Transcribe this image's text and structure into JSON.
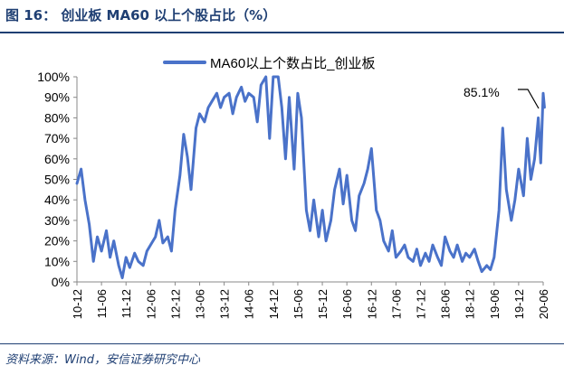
{
  "header": {
    "title": "图 16：  创业板 MA60 以上个股占比（%）"
  },
  "footer": {
    "source": "资料来源：Wind，安信证券研究中心"
  },
  "colors": {
    "line": "#4a72c9",
    "title": "#1f3f73",
    "axis": "#888888",
    "annotation_leader": "#000000"
  },
  "chart_data": {
    "type": "line",
    "title": "",
    "xlabel": "",
    "ylabel": "",
    "ylim": [
      0,
      100
    ],
    "legend": {
      "label": "MA60以上个数占比_创业板",
      "placement": "top"
    },
    "grid": false,
    "y_ticks": [
      "0%",
      "10%",
      "20%",
      "30%",
      "40%",
      "50%",
      "60%",
      "70%",
      "80%",
      "90%",
      "100%"
    ],
    "x_ticks": [
      "10-12",
      "11-06",
      "11-12",
      "12-06",
      "12-12",
      "13-06",
      "13-12",
      "14-06",
      "14-12",
      "15-06",
      "15-12",
      "16-06",
      "16-12",
      "17-06",
      "17-12",
      "18-06",
      "18-12",
      "19-06",
      "19-12",
      "20-06"
    ],
    "annotation": {
      "text": "85.1%",
      "value": 85.1
    },
    "series": [
      {
        "name": "MA60以上个数占比_创业板",
        "x": [
          0,
          0.17,
          0.33,
          0.5,
          0.67,
          0.83,
          1.0,
          1.2,
          1.35,
          1.5,
          1.7,
          1.85,
          2.0,
          2.15,
          2.35,
          2.5,
          2.7,
          2.85,
          3.0,
          3.2,
          3.35,
          3.5,
          3.7,
          3.85,
          4.0,
          4.2,
          4.35,
          4.5,
          4.65,
          4.85,
          5.0,
          5.2,
          5.35,
          5.5,
          5.7,
          5.85,
          6.0,
          6.2,
          6.35,
          6.5,
          6.7,
          6.85,
          7.0,
          7.2,
          7.35,
          7.5,
          7.7,
          7.85,
          8.0,
          8.2,
          8.35,
          8.5,
          8.65,
          8.85,
          9.0,
          9.15,
          9.35,
          9.5,
          9.65,
          9.85,
          10.0,
          10.15,
          10.35,
          10.5,
          10.7,
          10.85,
          11.0,
          11.2,
          11.35,
          11.5,
          11.7,
          11.85,
          12.0,
          12.2,
          12.35,
          12.5,
          12.7,
          12.85,
          13.0,
          13.2,
          13.35,
          13.5,
          13.7,
          13.85,
          14.0,
          14.2,
          14.35,
          14.5,
          14.7,
          14.85,
          15.0,
          15.2,
          15.35,
          15.5,
          15.7,
          15.85,
          16.0,
          16.2,
          16.35,
          16.5,
          16.7,
          16.85,
          17.0,
          17.2,
          17.35,
          17.5,
          17.7,
          17.85,
          18.0,
          18.2,
          18.35,
          18.5,
          18.65,
          18.8,
          18.9,
          19.0,
          19.05
        ],
        "values": [
          48,
          55,
          40,
          28,
          10,
          22,
          15,
          25,
          12,
          20,
          8,
          2,
          12,
          7,
          14,
          10,
          8,
          15,
          18,
          22,
          30,
          19,
          22,
          15,
          35,
          52,
          72,
          61,
          45,
          75,
          82,
          78,
          85,
          88,
          92,
          85,
          90,
          92,
          82,
          90,
          95,
          88,
          92,
          90,
          78,
          96,
          100,
          70,
          100,
          100,
          85,
          60,
          90,
          55,
          92,
          80,
          35,
          25,
          40,
          22,
          35,
          20,
          30,
          45,
          55,
          38,
          52,
          30,
          25,
          42,
          48,
          55,
          65,
          35,
          30,
          20,
          15,
          25,
          12,
          15,
          18,
          12,
          10,
          16,
          8,
          14,
          10,
          18,
          12,
          8,
          22,
          15,
          12,
          18,
          10,
          14,
          12,
          16,
          10,
          5,
          8,
          6,
          12,
          35,
          75,
          45,
          30,
          40,
          55,
          42,
          70,
          50,
          60,
          80,
          58,
          92,
          85.1
        ]
      }
    ]
  }
}
